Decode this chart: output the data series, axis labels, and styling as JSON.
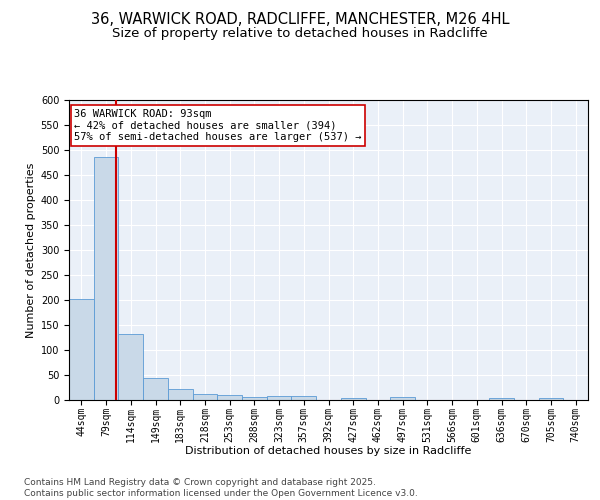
{
  "title1": "36, WARWICK ROAD, RADCLIFFE, MANCHESTER, M26 4HL",
  "title2": "Size of property relative to detached houses in Radcliffe",
  "xlabel": "Distribution of detached houses by size in Radcliffe",
  "ylabel": "Number of detached properties",
  "bin_labels": [
    "44sqm",
    "79sqm",
    "114sqm",
    "149sqm",
    "183sqm",
    "218sqm",
    "253sqm",
    "288sqm",
    "323sqm",
    "357sqm",
    "392sqm",
    "427sqm",
    "462sqm",
    "497sqm",
    "531sqm",
    "566sqm",
    "601sqm",
    "636sqm",
    "670sqm",
    "705sqm",
    "740sqm"
  ],
  "bar_heights": [
    203,
    487,
    133,
    45,
    22,
    13,
    11,
    6,
    9,
    9,
    0,
    5,
    0,
    7,
    0,
    0,
    0,
    4,
    0,
    4,
    0
  ],
  "bar_color": "#c9d9e8",
  "bar_edge_color": "#5b9bd5",
  "vline_x": 1.4,
  "vline_color": "#cc0000",
  "annotation_text": "36 WARWICK ROAD: 93sqm\n← 42% of detached houses are smaller (394)\n57% of semi-detached houses are larger (537) →",
  "annotation_box_color": "#ffffff",
  "annotation_box_edge": "#cc0000",
  "footer": "Contains HM Land Registry data © Crown copyright and database right 2025.\nContains public sector information licensed under the Open Government Licence v3.0.",
  "ylim": [
    0,
    600
  ],
  "yticks": [
    0,
    50,
    100,
    150,
    200,
    250,
    300,
    350,
    400,
    450,
    500,
    550,
    600
  ],
  "bg_color": "#eaf0f8",
  "fig_bg_color": "#ffffff",
  "title_fontsize": 10.5,
  "subtitle_fontsize": 9.5,
  "axis_label_fontsize": 8,
  "tick_fontsize": 7,
  "footer_fontsize": 6.5,
  "annot_fontsize": 7.5
}
